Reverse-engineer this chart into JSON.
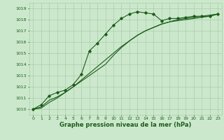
{
  "background_color": "#cce8cc",
  "grid_color": "#aaccaa",
  "line_color": "#1a5c1a",
  "marker_color": "#1a5c1a",
  "xlabel": "Graphe pression niveau de la mer (hPa)",
  "xlabel_color": "#1a5c1a",
  "xlim": [
    -0.5,
    23.5
  ],
  "ylim": [
    1009.5,
    1019.5
  ],
  "yticks": [
    1010,
    1011,
    1012,
    1013,
    1014,
    1015,
    1016,
    1017,
    1018,
    1019
  ],
  "xticks": [
    0,
    1,
    2,
    3,
    4,
    5,
    6,
    7,
    8,
    9,
    10,
    11,
    12,
    13,
    14,
    15,
    16,
    17,
    18,
    19,
    20,
    21,
    22,
    23
  ],
  "series1": {
    "x": [
      0,
      1,
      2,
      3,
      4,
      5,
      6,
      7,
      8,
      9,
      10,
      11,
      12,
      13,
      14,
      15,
      16,
      17,
      18,
      19,
      20,
      21,
      22,
      23
    ],
    "y": [
      1010.0,
      1010.4,
      1011.2,
      1011.5,
      1011.7,
      1012.2,
      1013.1,
      1015.2,
      1015.9,
      1016.7,
      1017.5,
      1018.1,
      1018.5,
      1018.7,
      1018.6,
      1018.5,
      1017.9,
      1018.1,
      1018.1,
      1018.2,
      1018.3,
      1018.3,
      1018.3,
      1018.5
    ]
  },
  "series2": {
    "x": [
      0,
      1,
      2,
      3,
      4,
      5,
      6,
      7,
      8,
      9,
      10,
      11,
      12,
      13,
      14,
      15,
      16,
      17,
      18,
      19,
      20,
      21,
      22,
      23
    ],
    "y": [
      1010.0,
      1010.2,
      1010.8,
      1011.1,
      1011.5,
      1012.0,
      1012.5,
      1013.0,
      1013.5,
      1014.0,
      1014.8,
      1015.5,
      1016.1,
      1016.6,
      1017.0,
      1017.3,
      1017.6,
      1017.8,
      1017.9,
      1018.0,
      1018.1,
      1018.2,
      1018.3,
      1018.5
    ]
  },
  "series3": {
    "x": [
      0,
      1,
      2,
      3,
      4,
      5,
      6,
      7,
      8,
      9,
      10,
      11,
      12,
      13,
      14,
      15,
      16,
      17,
      18,
      19,
      20,
      21,
      22,
      23
    ],
    "y": [
      1010.0,
      1010.1,
      1010.6,
      1011.0,
      1011.5,
      1012.0,
      1012.6,
      1013.2,
      1013.8,
      1014.4,
      1015.0,
      1015.6,
      1016.1,
      1016.6,
      1017.0,
      1017.3,
      1017.6,
      1017.8,
      1018.0,
      1018.1,
      1018.2,
      1018.3,
      1018.4,
      1018.5
    ]
  },
  "tick_fontsize": 4.5,
  "xlabel_fontsize": 6.0
}
